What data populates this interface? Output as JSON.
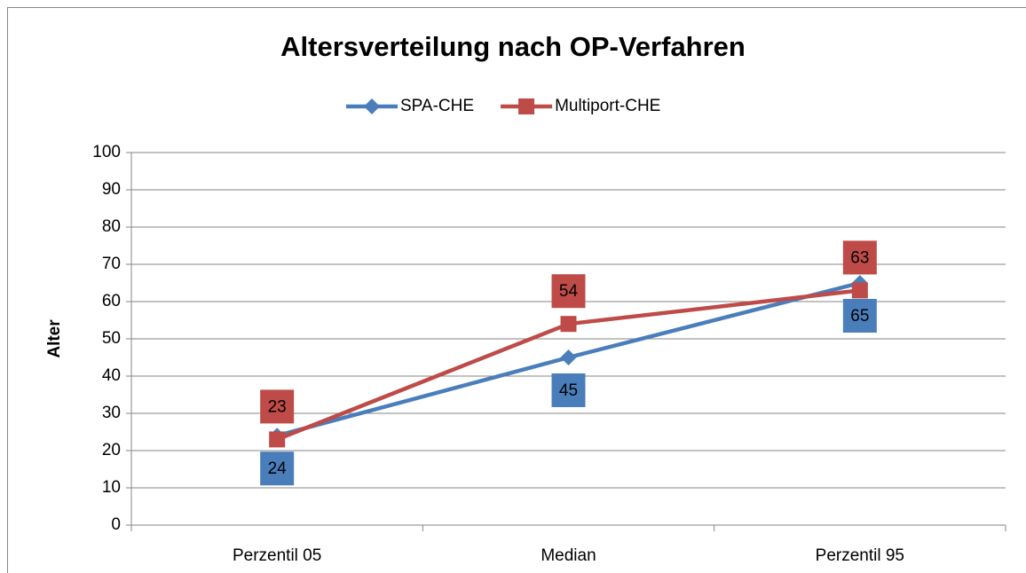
{
  "chart_data": {
    "type": "line",
    "title": "Altersverteilung nach OP-Verfahren",
    "y_label": "Alter",
    "categories": [
      "Perzentil 05",
      "Median",
      "Perzentil 95"
    ],
    "series": [
      {
        "name": "SPA-CHE",
        "color": "#4a7ebb",
        "marker": "diamond",
        "values": [
          24,
          45,
          65
        ]
      },
      {
        "name": "Multiport-CHE",
        "color": "#be4b48",
        "marker": "square",
        "values": [
          23,
          54,
          63
        ]
      }
    ],
    "ylim": [
      0,
      100
    ],
    "yticks": [
      0,
      10,
      20,
      30,
      40,
      50,
      60,
      70,
      80,
      90,
      100
    ],
    "grid": true,
    "legend": "top"
  }
}
